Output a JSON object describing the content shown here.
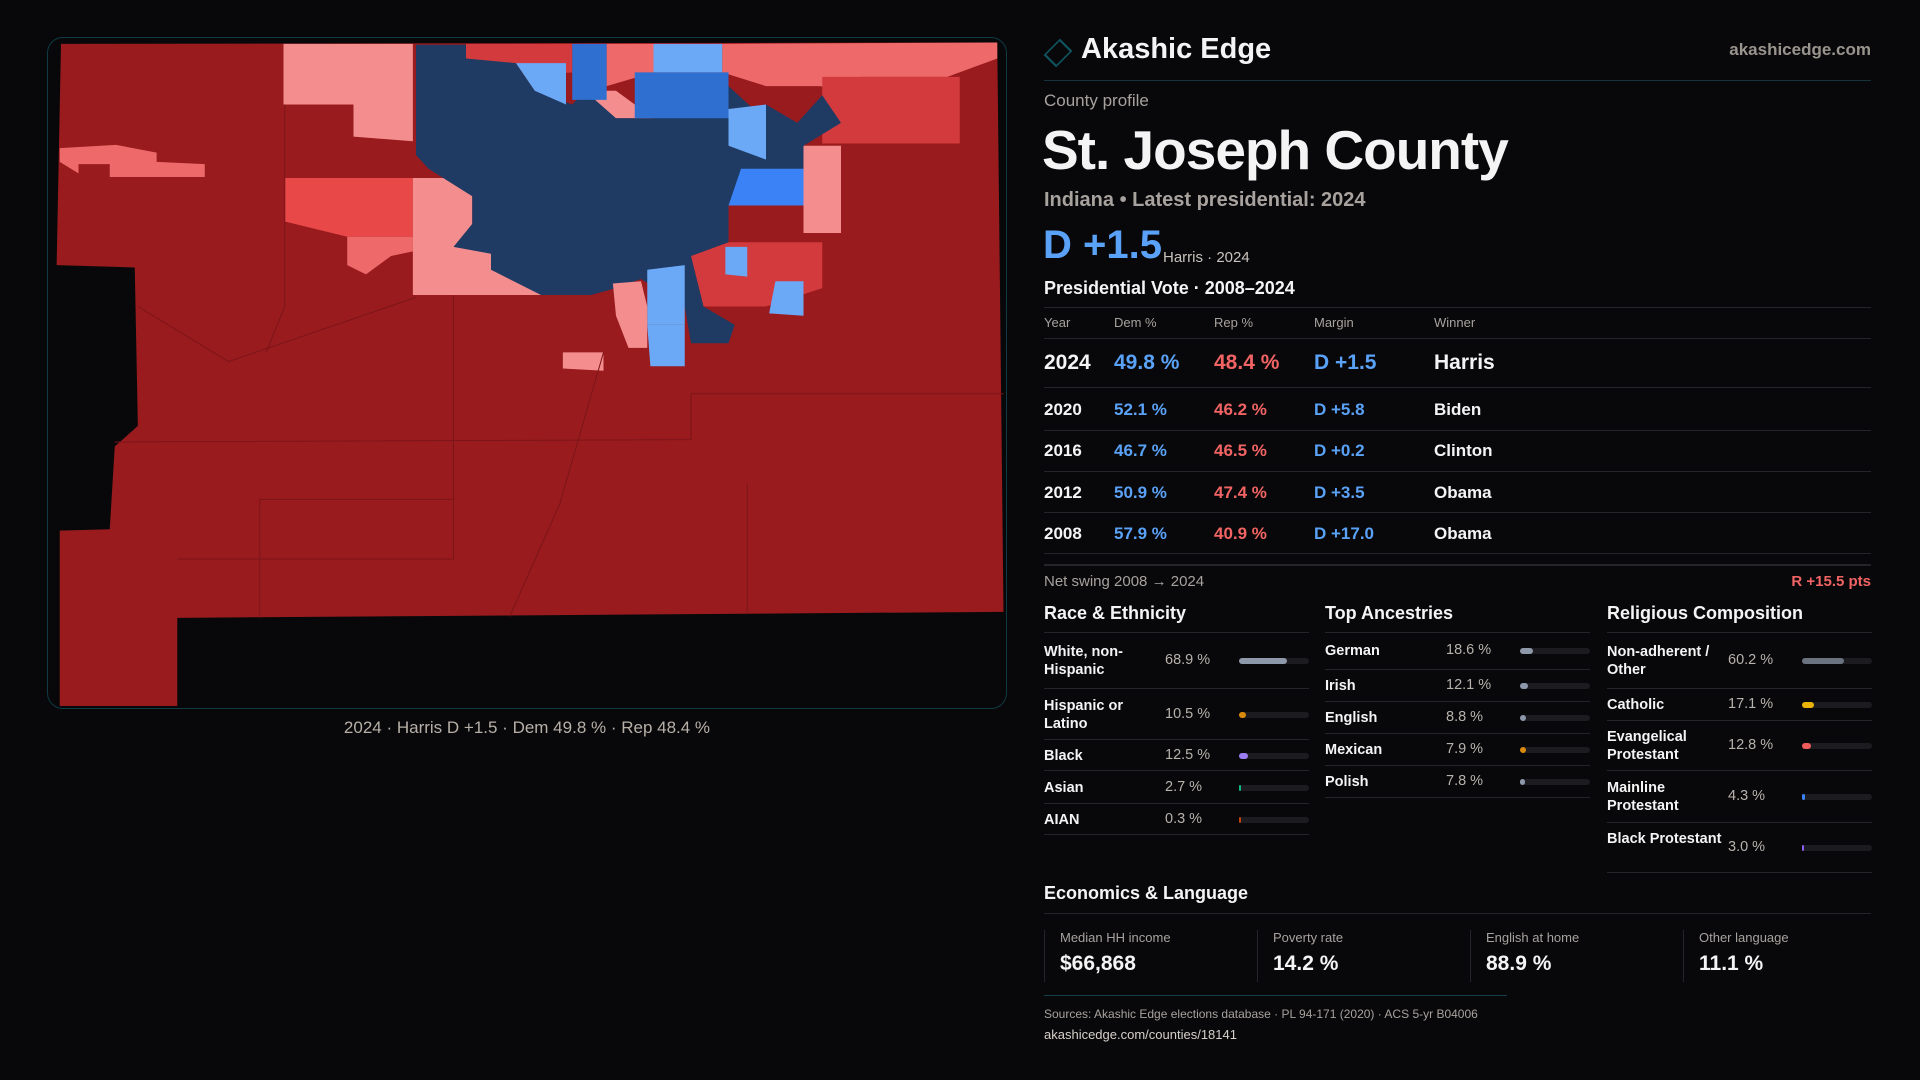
{
  "header": {
    "brand": "Akashic Edge",
    "site": "akashicedge.com",
    "brand_icon": "diamond-icon"
  },
  "profile": {
    "kicker": "County profile",
    "title": "St. Joseph County",
    "subtitle": "Indiana • Latest presidential: 2024",
    "margin": "D +1.5",
    "margin_sub": "Harris · 2024"
  },
  "map": {
    "caption": "2024 · Harris D +1.5 · Dem 49.8 % · Rep 48.4 %",
    "colors": {
      "strong_r": "#9a1b1e",
      "r": "#d23a3e",
      "lean_r": "#e84848",
      "tilt_r": "#ee6a6a",
      "pink_r": "#f48e8e",
      "strong_d": "#1f3a63",
      "d": "#2f6fd0",
      "lean_d": "#3b82f6",
      "tilt_d": "#6ba8f5"
    }
  },
  "votes": {
    "title": "Presidential Vote · 2008–2024",
    "headers": [
      "Year",
      "Dem %",
      "Rep %",
      "Margin",
      "Winner"
    ],
    "rows": [
      {
        "year": "2024",
        "dem": "49.8 %",
        "rep": "48.4 %",
        "margin": "D +1.5",
        "winner": "Harris"
      },
      {
        "year": "2020",
        "dem": "52.1 %",
        "rep": "46.2 %",
        "margin": "D +5.8",
        "winner": "Biden"
      },
      {
        "year": "2016",
        "dem": "46.7 %",
        "rep": "46.5 %",
        "margin": "D +0.2",
        "winner": "Clinton"
      },
      {
        "year": "2012",
        "dem": "50.9 %",
        "rep": "47.4 %",
        "margin": "D +3.5",
        "winner": "Obama"
      },
      {
        "year": "2008",
        "dem": "57.9 %",
        "rep": "40.9 %",
        "margin": "D +17.0",
        "winner": "Obama"
      }
    ],
    "swing_label": "Net swing 2008 → 2024",
    "swing_value": "R +15.5 pts"
  },
  "race": {
    "title": "Race & Ethnicity",
    "items": [
      {
        "label": "White, non-Hispanic",
        "value": "68.9 %",
        "pct": 68.9,
        "color": "#8e98ab"
      },
      {
        "label": "Hispanic or Latino",
        "value": "10.5 %",
        "pct": 10.5,
        "color": "#d98a0b"
      },
      {
        "label": "Black",
        "value": "12.5 %",
        "pct": 12.5,
        "color": "#9b7cf0"
      },
      {
        "label": "Asian",
        "value": "2.7 %",
        "pct": 2.7,
        "color": "#10b981"
      },
      {
        "label": "AIAN",
        "value": "0.3 %",
        "pct": 0.3,
        "color": "#c2410c"
      }
    ]
  },
  "ancestry": {
    "title": "Top Ancestries",
    "items": [
      {
        "label": "German",
        "value": "18.6 %",
        "pct": 18.6,
        "color": "#8e98ab"
      },
      {
        "label": "Irish",
        "value": "12.1 %",
        "pct": 12.1,
        "color": "#8e98ab"
      },
      {
        "label": "English",
        "value": "8.8 %",
        "pct": 8.8,
        "color": "#8e98ab"
      },
      {
        "label": "Mexican",
        "value": "7.9 %",
        "pct": 7.9,
        "color": "#d98a0b"
      },
      {
        "label": "Polish",
        "value": "7.8 %",
        "pct": 7.8,
        "color": "#8e98ab"
      }
    ]
  },
  "religion": {
    "title": "Religious Composition",
    "items": [
      {
        "label": "Non-adherent / Other",
        "value": "60.2 %",
        "pct": 60.2,
        "color": "#6b7280"
      },
      {
        "label": "Catholic",
        "value": "17.1 %",
        "pct": 17.1,
        "color": "#eab308"
      },
      {
        "label": "Evangelical Protestant",
        "value": "12.8 %",
        "pct": 12.8,
        "color": "#ef5b5b"
      },
      {
        "label": "Mainline Protestant",
        "value": "4.3 %",
        "pct": 4.3,
        "color": "#3b82f6"
      },
      {
        "label": "Black Protestant",
        "value": "3.0 %",
        "pct": 3.0,
        "color": "#8b5cf6"
      }
    ]
  },
  "econ": {
    "title": "Economics & Language",
    "cards": [
      {
        "label": "Median HH income",
        "value": "$66,868"
      },
      {
        "label": "Poverty rate",
        "value": "14.2 %"
      },
      {
        "label": "English at home",
        "value": "88.9 %"
      },
      {
        "label": "Other language",
        "value": "11.1 %"
      }
    ]
  },
  "footer": {
    "sources": "Sources: Akashic Edge elections database · PL 94-171 (2020) · ACS 5-yr B04006",
    "url": "akashicedge.com/counties/18141"
  }
}
